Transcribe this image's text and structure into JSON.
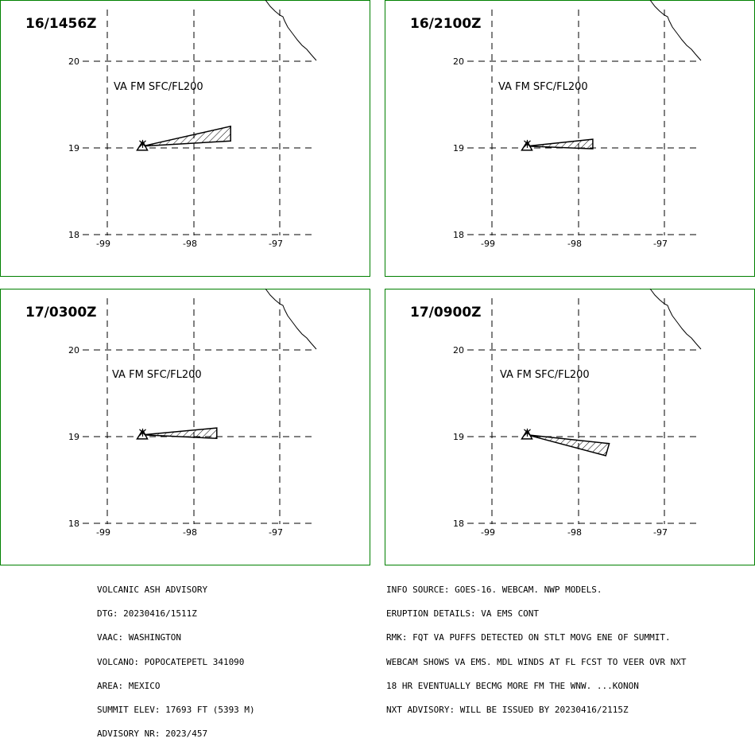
{
  "colors": {
    "frame": "#008000",
    "grid": "#000000",
    "background": "#ffffff",
    "text": "#000000"
  },
  "panels": [
    {
      "time_label": "16/1456Z",
      "layer_label": "VA FM SFC/FL200",
      "lat_labels": [
        "20",
        "19",
        "18"
      ],
      "lon_labels": [
        "-99",
        "-98",
        "-97"
      ],
      "volcano_icon": "volcano-triangle-icon",
      "plume": [
        [
          -98.59,
          19.02
        ],
        [
          -97.57,
          19.25
        ],
        [
          -97.57,
          19.08
        ],
        [
          -98.59,
          19.02
        ]
      ]
    },
    {
      "time_label": "16/2100Z",
      "layer_label": "VA FM SFC/FL200",
      "lat_labels": [
        "20",
        "19",
        "18"
      ],
      "lon_labels": [
        "-99",
        "-98",
        "-97"
      ],
      "volcano_icon": "volcano-triangle-icon",
      "plume": [
        [
          -98.59,
          19.02
        ],
        [
          -97.83,
          19.1
        ],
        [
          -97.83,
          18.99
        ],
        [
          -98.59,
          19.02
        ]
      ]
    },
    {
      "time_label": "17/0300Z",
      "layer_label": "VA FM SFC/FL200",
      "lat_labels": [
        "20",
        "19",
        "18"
      ],
      "lon_labels": [
        "-99",
        "-98",
        "-97"
      ],
      "volcano_icon": "volcano-triangle-icon",
      "plume": [
        [
          -98.59,
          19.02
        ],
        [
          -97.73,
          19.1
        ],
        [
          -97.73,
          18.98
        ],
        [
          -98.59,
          19.02
        ]
      ]
    },
    {
      "time_label": "17/0900Z",
      "layer_label": "VA FM SFC/FL200",
      "lat_labels": [
        "20",
        "19",
        "18"
      ],
      "lon_labels": [
        "-99",
        "-98",
        "-97"
      ],
      "volcano_icon": "volcano-triangle-icon",
      "plume": [
        [
          -98.59,
          19.02
        ],
        [
          -97.64,
          18.92
        ],
        [
          -97.68,
          18.78
        ],
        [
          -98.59,
          19.02
        ]
      ]
    }
  ],
  "advisory_left": [
    "VOLCANIC ASH ADVISORY",
    "DTG: 20230416/1511Z",
    "VAAC: WASHINGTON",
    "VOLCANO: POPOCATEPETL 341090",
    "AREA: MEXICO",
    "SUMMIT ELEV: 17693 FT (5393 M)",
    "ADVISORY NR: 2023/457"
  ],
  "advisory_right": [
    "INFO SOURCE: GOES-16. WEBCAM. NWP MODELS.",
    "ERUPTION DETAILS: VA EMS CONT",
    "RMK: FQT VA PUFFS DETECTED ON STLT MOVG ENE OF SUMMIT.",
    "WEBCAM SHOWS VA EMS. MDL WINDS AT FL FCST TO VEER OVR NXT",
    "18 HR EVENTUALLY BECMG MORE FM THE WNW. ...KONON",
    "NXT ADVISORY: WILL BE ISSUED BY 20230416/2115Z"
  ]
}
